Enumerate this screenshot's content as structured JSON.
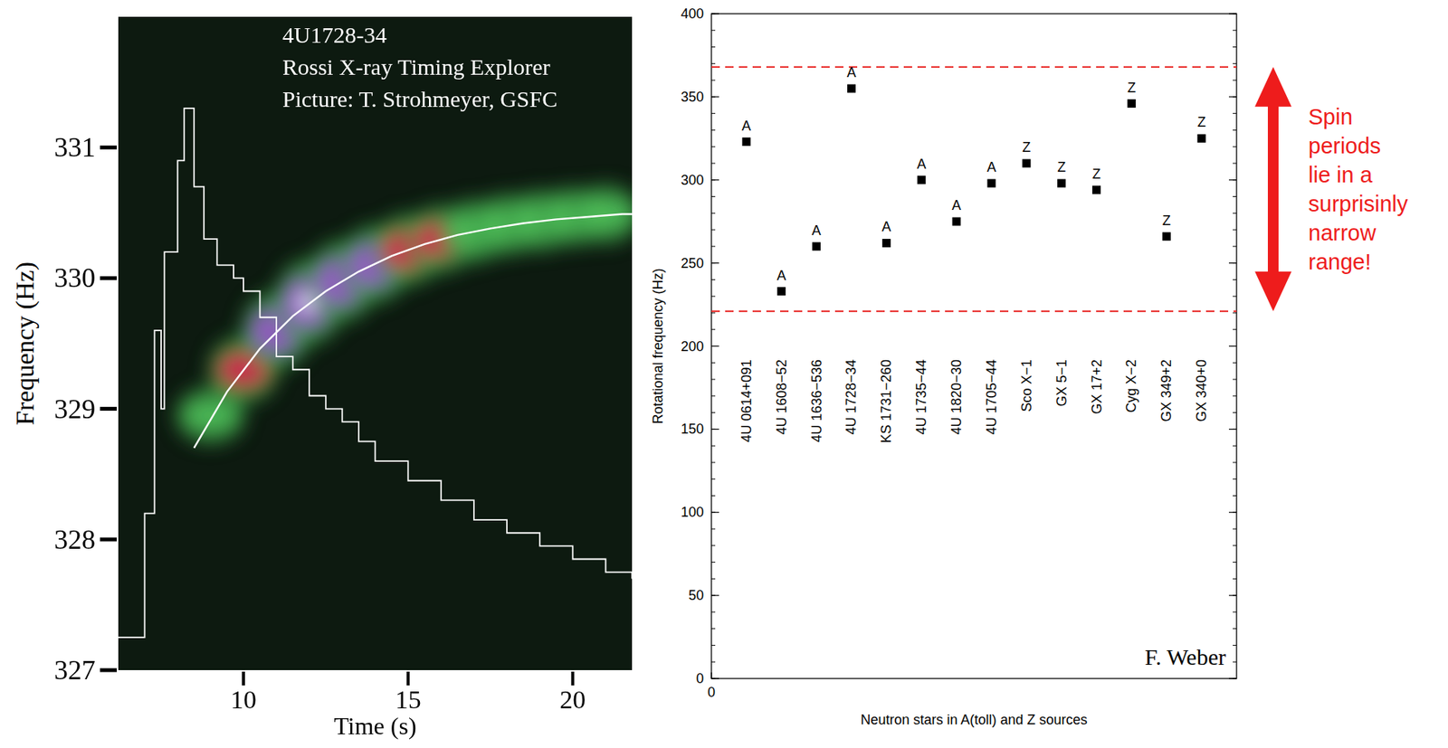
{
  "chart_data": [
    {
      "type": "line",
      "annotations": [
        "4U1728-34",
        "Rossi X-ray Timing Explorer",
        "Picture: T. Strohmeyer, GSFC"
      ],
      "x_label": "Time (s)",
      "y_label": "Frequency (Hz)",
      "xlim": [
        6.2,
        21.8
      ],
      "ylim": [
        327,
        332
      ],
      "xticks": [
        10,
        15,
        20
      ],
      "yticks": [
        327,
        328,
        329,
        330,
        331
      ],
      "series": [
        {
          "type": "heatmap",
          "x": [
            9,
            10,
            11,
            12,
            13,
            14,
            15,
            16,
            17,
            18,
            19,
            20,
            21
          ],
          "values": [
            328.95,
            329.3,
            329.6,
            329.82,
            329.98,
            330.11,
            330.22,
            330.3,
            330.36,
            330.41,
            330.44,
            330.47,
            330.49
          ],
          "power": [
            0.3,
            0.55,
            0.8,
            1.0,
            0.9,
            0.8,
            0.65,
            0.55,
            0.45,
            0.4,
            0.4,
            0.35,
            0.35
          ]
        },
        {
          "type": "line",
          "line_style": "steps",
          "color": "#ffffff",
          "x": [
            6.2,
            7.0,
            7.3,
            7.5,
            7.6,
            8.0,
            8.2,
            8.5,
            8.8,
            9.2,
            9.7,
            10.0,
            10.5,
            11.0,
            11.5,
            12.0,
            12.5,
            13.0,
            13.5,
            14.0,
            15.0,
            16.0,
            17.0,
            18.0,
            19.0,
            20.0,
            21.0,
            21.8
          ],
          "values": [
            327.25,
            328.2,
            329.6,
            329.0,
            330.2,
            330.9,
            331.3,
            330.7,
            330.3,
            330.1,
            330.0,
            329.9,
            329.7,
            329.4,
            329.3,
            329.1,
            329.0,
            328.9,
            328.75,
            328.6,
            328.45,
            328.3,
            328.15,
            328.05,
            327.95,
            327.85,
            327.75,
            327.7
          ]
        },
        {
          "type": "line",
          "line_style": "solid",
          "color": "#ffffff",
          "x": [
            8.5,
            9.5,
            10.5,
            11.5,
            12.5,
            13.5,
            14.5,
            15.5,
            16.5,
            17.5,
            18.5,
            19.5,
            20.5,
            21.5,
            21.8
          ],
          "values": [
            328.7,
            329.13,
            329.46,
            329.71,
            329.9,
            330.05,
            330.17,
            330.26,
            330.33,
            330.38,
            330.42,
            330.45,
            330.47,
            330.49,
            330.49
          ]
        }
      ]
    },
    {
      "type": "scatter",
      "x_label": "Neutron stars in A(toll) and Z sources",
      "y_label": "Rotational frequency (Hz)",
      "categories": [
        "4U 0614+091",
        "4U 1608−52",
        "4U 1636−536",
        "4U 1728−34",
        "KS 1731−260",
        "4U 1735−44",
        "4U 1820−30",
        "4U 1705−44",
        "Sco X−1",
        "GX 5−1",
        "GX 17+2",
        "Cyg X−2",
        "GX 349+2",
        "GX 340+0"
      ],
      "x": [
        1,
        2,
        3,
        4,
        5,
        6,
        7,
        8,
        9,
        10,
        11,
        12,
        13,
        14
      ],
      "values": [
        323,
        233,
        260,
        355,
        262,
        300,
        275,
        298,
        310,
        298,
        294,
        346,
        266,
        325
      ],
      "classes": [
        "A",
        "A",
        "A",
        "A",
        "A",
        "A",
        "A",
        "A",
        "Z",
        "Z",
        "Z",
        "Z",
        "Z",
        "Z"
      ],
      "marker": "square",
      "color": "#000000",
      "xlim": [
        0,
        15
      ],
      "xticks": [
        0
      ],
      "ylim": [
        0,
        400
      ],
      "yticks": [
        0,
        50,
        100,
        150,
        200,
        250,
        300,
        350,
        400
      ],
      "reference_lines": [
        221,
        368
      ],
      "annotations": [
        "Spin periods lie in a surprisinly narrow range!",
        "F. Weber"
      ]
    }
  ]
}
